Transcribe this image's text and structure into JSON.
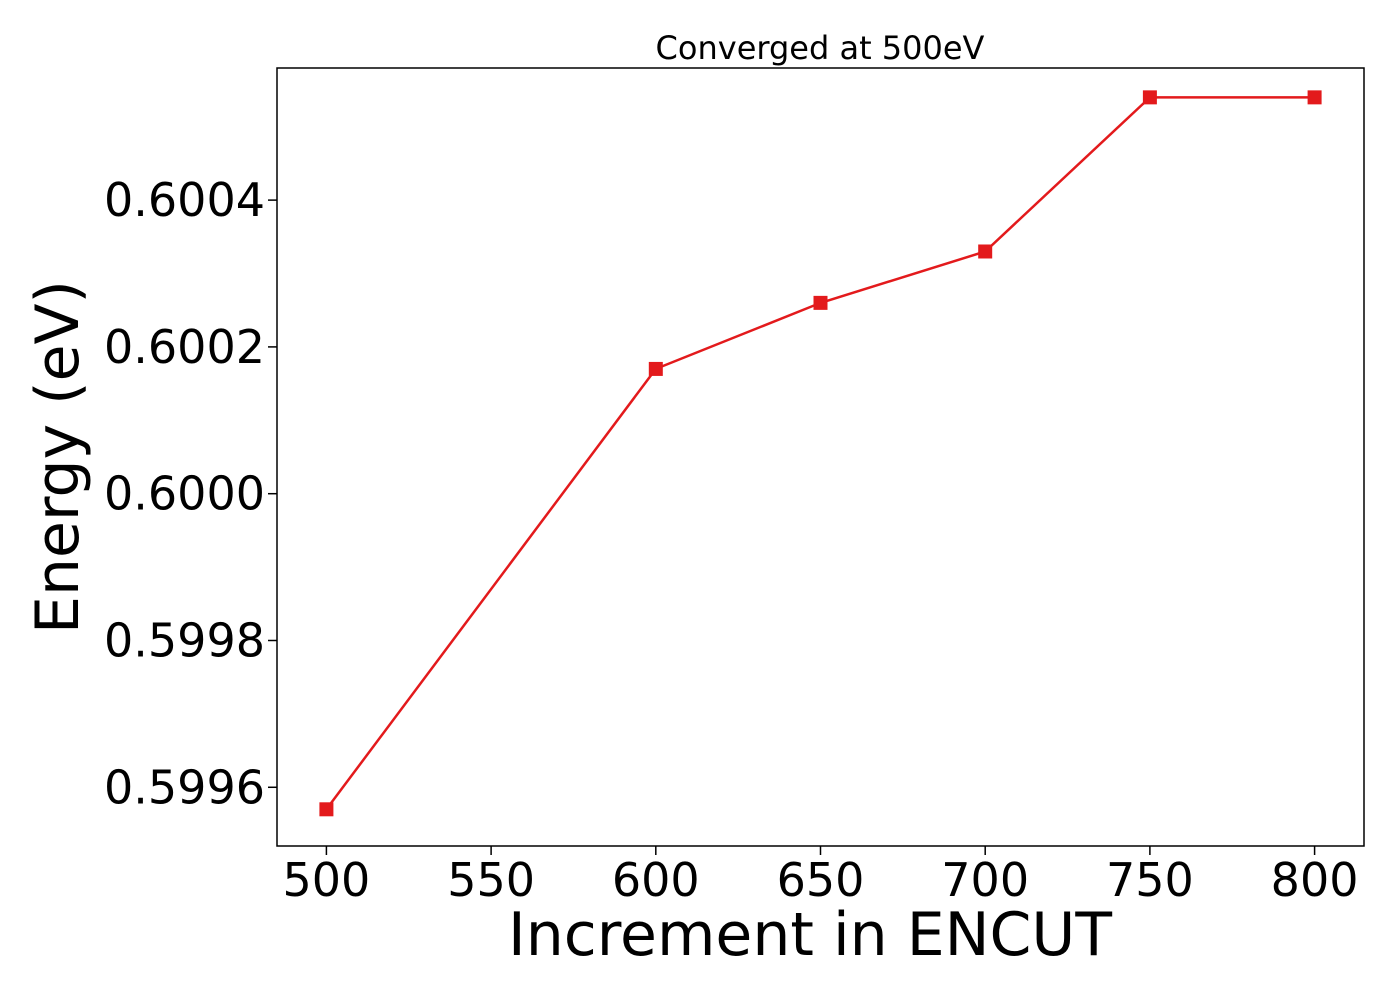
{
  "chart_data": {
    "type": "line",
    "title": "Converged at 500eV",
    "xlabel": "Increment in ENCUT",
    "ylabel": "Energy (eV)",
    "xlim": [
      485,
      815
    ],
    "ylim": [
      0.59952,
      0.60058
    ],
    "x_ticks": [
      500,
      550,
      600,
      650,
      700,
      750,
      800
    ],
    "x_tick_labels": [
      "500",
      "550",
      "600",
      "650",
      "700",
      "750",
      "800"
    ],
    "y_ticks": [
      0.5996,
      0.5998,
      0.6,
      0.6002,
      0.6004
    ],
    "y_tick_labels": [
      "0.5996",
      "0.5998",
      "0.6000",
      "0.6002",
      "0.6004"
    ],
    "grid": false,
    "legend": "none",
    "series": [
      {
        "x": [
          500,
          600,
          650,
          700,
          750,
          800
        ],
        "y": [
          0.59957,
          0.60017,
          0.60026,
          0.60033,
          0.60054,
          0.60054
        ],
        "color": "#e31a1c",
        "marker": "square"
      }
    ]
  }
}
